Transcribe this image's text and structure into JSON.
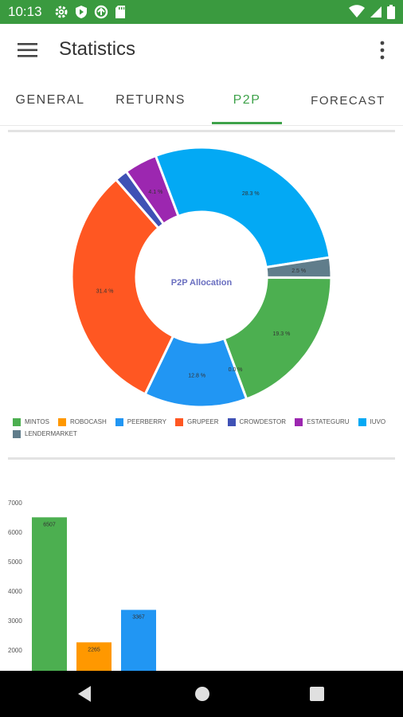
{
  "status_bar": {
    "time": "10:13",
    "left_icons": [
      "gear-icon",
      "shield-play-icon",
      "sync-icon",
      "sd-card-icon"
    ],
    "right_icons": [
      "wifi-icon",
      "cellular-icon",
      "battery-icon"
    ]
  },
  "app_bar": {
    "title": "Statistics",
    "menu_icon": "hamburger-icon",
    "overflow_icon": "more-vert-icon"
  },
  "tabs": [
    {
      "label": "GENERAL",
      "active": false
    },
    {
      "label": "RETURNS",
      "active": false
    },
    {
      "label": "P2P",
      "active": true
    },
    {
      "label": "FORECAST",
      "active": false
    }
  ],
  "colors": {
    "primary": "#3a9a3f",
    "accent": "#3ea24a",
    "center_label": "#6a6fc0"
  },
  "chart_data": [
    {
      "type": "pie",
      "center_label": "P2P Allocation",
      "slices": [
        {
          "name": "MINTOS",
          "value": 19.3,
          "label": "19.3 %",
          "color": "#4caf50"
        },
        {
          "name": "ROBOCASH",
          "value": 0.0,
          "label": "0.0 %",
          "color": "#ff9800"
        },
        {
          "name": "PEERBERRY",
          "value": 12.8,
          "label": "12.8 %",
          "color": "#2196f3"
        },
        {
          "name": "GRUPEER",
          "value": 31.4,
          "label": "31.4 %",
          "color": "#ff5722"
        },
        {
          "name": "CROWDESTOR",
          "value": 1.6,
          "label": "",
          "color": "#3f51b5"
        },
        {
          "name": "ESTATEGURU",
          "value": 4.1,
          "label": "4.1 %",
          "color": "#9c27b0"
        },
        {
          "name": "IUVO",
          "value": 28.3,
          "label": "28.3 %",
          "color": "#03a9f4"
        },
        {
          "name": "LENDERMARKET",
          "value": 2.5,
          "label": "2.5 %",
          "color": "#607d8b"
        }
      ],
      "legend": [
        "MINTOS",
        "ROBOCASH",
        "PEERBERRY",
        "GRUPEER",
        "CROWDESTOR",
        "ESTATEGURU",
        "IUVO",
        "LENDERMARKET"
      ],
      "legend_placement": "bottom"
    },
    {
      "type": "bar",
      "categories": [
        "MINTOS",
        "ROBOCASH",
        "PEERBERRY"
      ],
      "values": [
        6507,
        2265,
        3367
      ],
      "value_labels": [
        "6507",
        "2265",
        "3367"
      ],
      "colors": [
        "#4caf50",
        "#ff9800",
        "#2196f3"
      ],
      "y_ticks": [
        "2000",
        "3000",
        "4000",
        "5000",
        "6000",
        "7000"
      ],
      "ylim": [
        1300,
        7300
      ]
    }
  ]
}
